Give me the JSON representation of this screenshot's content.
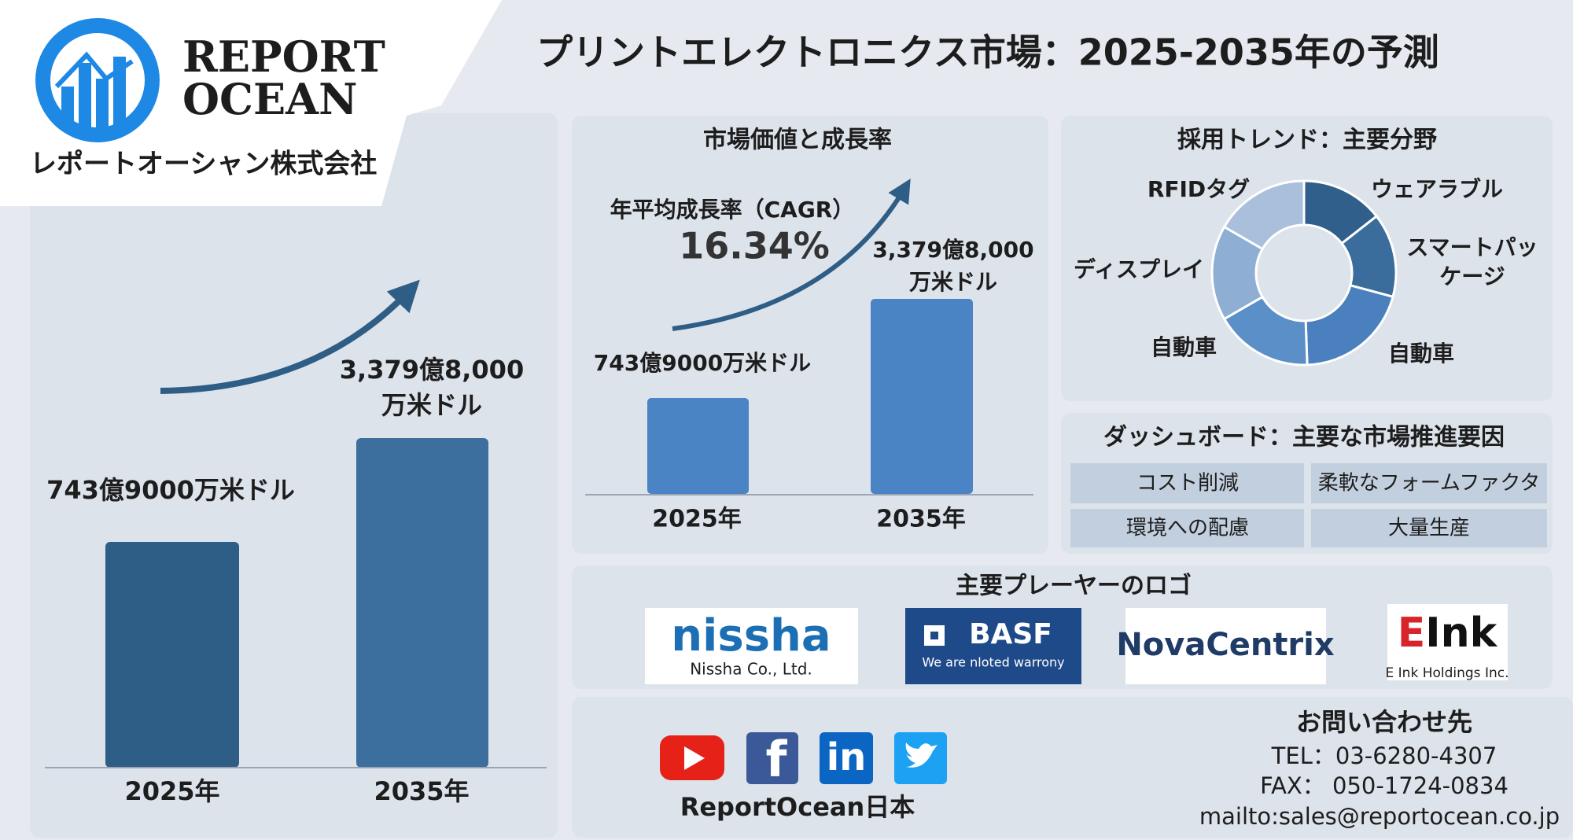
{
  "logo": {
    "line1": "REPORT",
    "line2": "OCEAN",
    "company": "レポートオーシャン株式会社"
  },
  "title": "プリントエレクトロニクス市場：2025-2035年の予測",
  "left_chart": {
    "labels": [
      "743億9000万米ドル",
      [
        "3,379億8,000",
        "万米ドル"
      ]
    ],
    "years": [
      "2025年",
      "2035年"
    ]
  },
  "growth_panel": {
    "title": "市場価値と成長率",
    "cagr_label": "年平均成長率（CAGR）",
    "cagr_value": "16.34%",
    "labels": [
      "743億9000万米ドル",
      [
        "3,379億8,000",
        "万米ドル"
      ]
    ],
    "years": [
      "2025年",
      "2035年"
    ]
  },
  "trend_panel": {
    "title": "採用トレンド：主要分野",
    "segments": [
      "ウェアラブル",
      [
        "スマートパッ",
        "ケージ"
      ],
      "自動車",
      "自動車",
      "ディスプレイ",
      "RFIDタグ"
    ]
  },
  "drivers_panel": {
    "title": "ダッシュボード：主要な市場推進要因",
    "cells": [
      [
        "コスト削減",
        "柔軟なフォームファクタ"
      ],
      [
        "環境への配慮",
        "大量生産"
      ]
    ]
  },
  "players_panel": {
    "title": "主要プレーヤーのロゴ",
    "nissha": {
      "name": "nissha",
      "sub": "Nissha Co., Ltd."
    },
    "basf": {
      "name": "BASF",
      "sub": "We are nloted warrony"
    },
    "novacentrix": {
      "name": "NovaCentrix"
    },
    "eink": {
      "mark_e": "E",
      "mark_rest": "Ink",
      "sub": "E Ink Holdings Inc."
    }
  },
  "contact": {
    "social": {
      "facebook": "f",
      "linkedin": "in"
    },
    "brand": "ReportOcean日本",
    "heading": "お問い合わせ先",
    "tel": "TEL：03-6280-4307",
    "fax": "FAX： 050-1724-0834",
    "mail": "mailto:sales@reportocean.co.jp"
  }
}
